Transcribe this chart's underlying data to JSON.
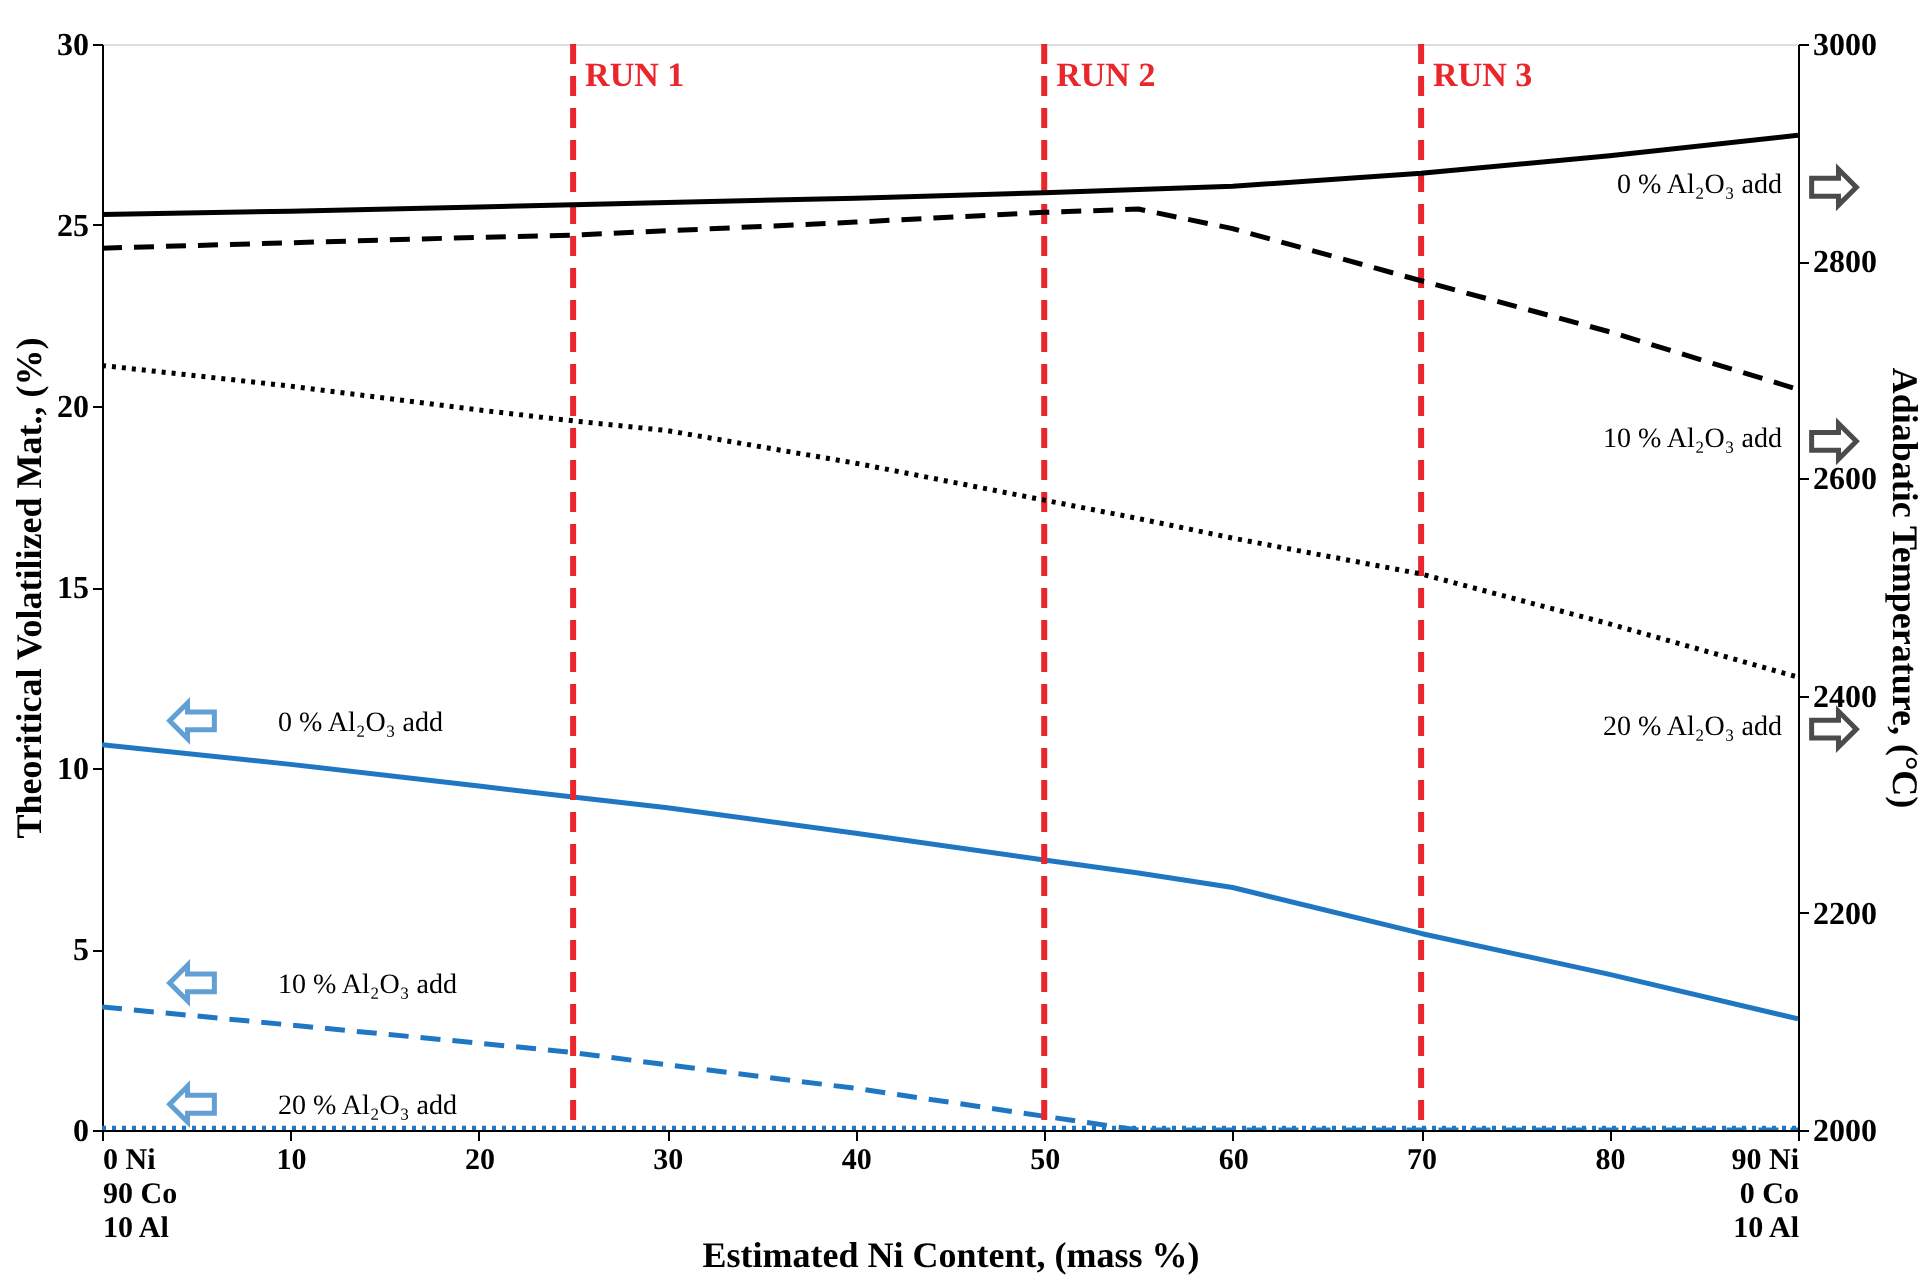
{
  "chart_data": {
    "type": "line",
    "xlabel": "Estimated Ni Content, (mass %)",
    "ylabel": "Theoritical Volatilized Mat., (%)",
    "y2label": "Adiabatic Temperature, (°C)",
    "x": [
      0,
      10,
      20,
      25,
      30,
      40,
      50,
      55,
      60,
      70,
      80,
      90
    ],
    "series": [
      {
        "color": "#1f77c4",
        "line_style": "solid",
        "values": [
          10.64,
          10.1,
          9.5,
          9.2,
          8.9,
          8.2,
          7.46,
          7.1,
          6.7,
          5.43,
          4.3,
          3.07
        ]
      },
      {
        "color": "#1f77c4",
        "line_style": "dashed",
        "values": [
          3.4,
          2.9,
          2.4,
          2.14,
          1.8,
          1.15,
          0.38,
          0,
          0,
          0,
          0,
          0
        ]
      },
      {
        "color": "#1f77c4",
        "line_style": "dotted",
        "values": [
          0.05,
          0.05,
          0.05,
          0.05,
          0.05,
          0.05,
          0.05,
          0.05,
          0.05,
          0.05,
          0.05,
          0.05
        ]
      },
      {
        "color": "#000000",
        "line_style": "solid",
        "axis": "y2",
        "values": [
          2843,
          2846,
          2850,
          2852,
          2854,
          2858,
          2863,
          2866,
          2869,
          2881,
          2897,
          2916
        ]
      },
      {
        "color": "#000000",
        "line_style": "dashed",
        "axis": "y2",
        "values": [
          2812,
          2817,
          2822,
          2824,
          2828,
          2836,
          2845,
          2848,
          2830,
          2782,
          2735,
          2682
        ]
      },
      {
        "color": "#000000",
        "line_style": "dotted",
        "axis": "y2",
        "values": [
          2704,
          2685,
          2663,
          2653,
          2644,
          2614,
          2580,
          2563,
          2545,
          2512,
          2466,
          2417
        ]
      }
    ],
    "xlim": [
      0,
      90
    ],
    "xticks": [
      {
        "value": 0,
        "label": "0 Ni\n90 Co\n10 Al"
      },
      10,
      20,
      30,
      40,
      50,
      60,
      70,
      80,
      {
        "value": 90,
        "label": "90 Ni\n0 Co\n10 Al"
      }
    ],
    "ylim": [
      0,
      30
    ],
    "yticks": [
      0,
      5,
      10,
      15,
      20,
      25,
      30
    ],
    "y2lim": [
      2000,
      3000
    ],
    "y2ticks": [
      2000,
      2200,
      2400,
      2600,
      2800,
      3000
    ],
    "ref_lines": [
      {
        "axis": "x",
        "value": 25,
        "label": "RUN 1",
        "color": "#e8262b",
        "line_style": "dashed"
      },
      {
        "axis": "x",
        "value": 50,
        "label": "RUN 2",
        "color": "#e8262b",
        "line_style": "dashed"
      },
      {
        "axis": "x",
        "value": 70,
        "label": "RUN 3",
        "color": "#e8262b",
        "line_style": "dashed"
      }
    ],
    "annotations": [
      "0 % Al₂O₃ add",
      "10 % Al₂O₃ add",
      "20 % Al₂O₃ add",
      "0 % Al₂O₃ add",
      "10 % Al₂O₃ add",
      "20 % Al₂O₃ add"
    ],
    "grid": false,
    "legend": false
  }
}
